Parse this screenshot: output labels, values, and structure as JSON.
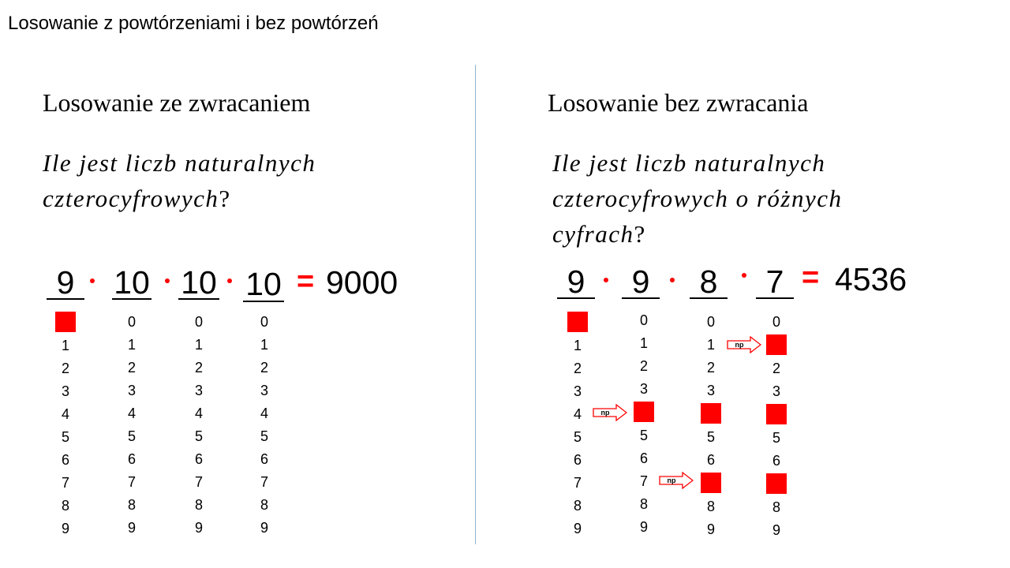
{
  "slide": {
    "title": "Losowanie z powtórzeniami i bez powtórzeń",
    "accent_color": "#ff0000",
    "divider_color": "#8fb3cf"
  },
  "left": {
    "heading": "Losowanie ze zwracaniem",
    "question_lines": [
      "Ile jest liczb naturalnych",
      "czterocyfrowych"
    ],
    "question_end": "?",
    "factors": [
      "9",
      "10",
      "10",
      "10"
    ],
    "equals": "=",
    "result": "9000",
    "columns": [
      [
        "",
        "1",
        "2",
        "3",
        "4",
        "5",
        "6",
        "7",
        "8",
        "9"
      ],
      [
        "0",
        "1",
        "2",
        "3",
        "4",
        "5",
        "6",
        "7",
        "8",
        "9"
      ],
      [
        "0",
        "1",
        "2",
        "3",
        "4",
        "5",
        "6",
        "7",
        "8",
        "9"
      ],
      [
        "0",
        "1",
        "2",
        "3",
        "4",
        "5",
        "6",
        "7",
        "8",
        "9"
      ]
    ]
  },
  "right": {
    "heading": "Losowanie bez zwracania",
    "question_lines": [
      "Ile jest liczb naturalnych",
      "czterocyfrowych o różnych",
      "cyfrach"
    ],
    "question_end": "?",
    "factors": [
      "9",
      "9",
      "8",
      "7"
    ],
    "equals": "=",
    "result": "4536",
    "arrow_label": "np",
    "columns": [
      [
        "",
        "1",
        "2",
        "3",
        "4",
        "5",
        "6",
        "7",
        "8",
        "9"
      ],
      [
        "0",
        "1",
        "2",
        "3",
        "",
        "5",
        "6",
        "7",
        "8",
        "9"
      ],
      [
        "0",
        "1",
        "2",
        "3",
        "",
        "5",
        "6",
        "",
        "8",
        "9"
      ],
      [
        "0",
        "",
        "2",
        "3",
        "",
        "5",
        "6",
        "",
        "8",
        "9"
      ]
    ]
  }
}
